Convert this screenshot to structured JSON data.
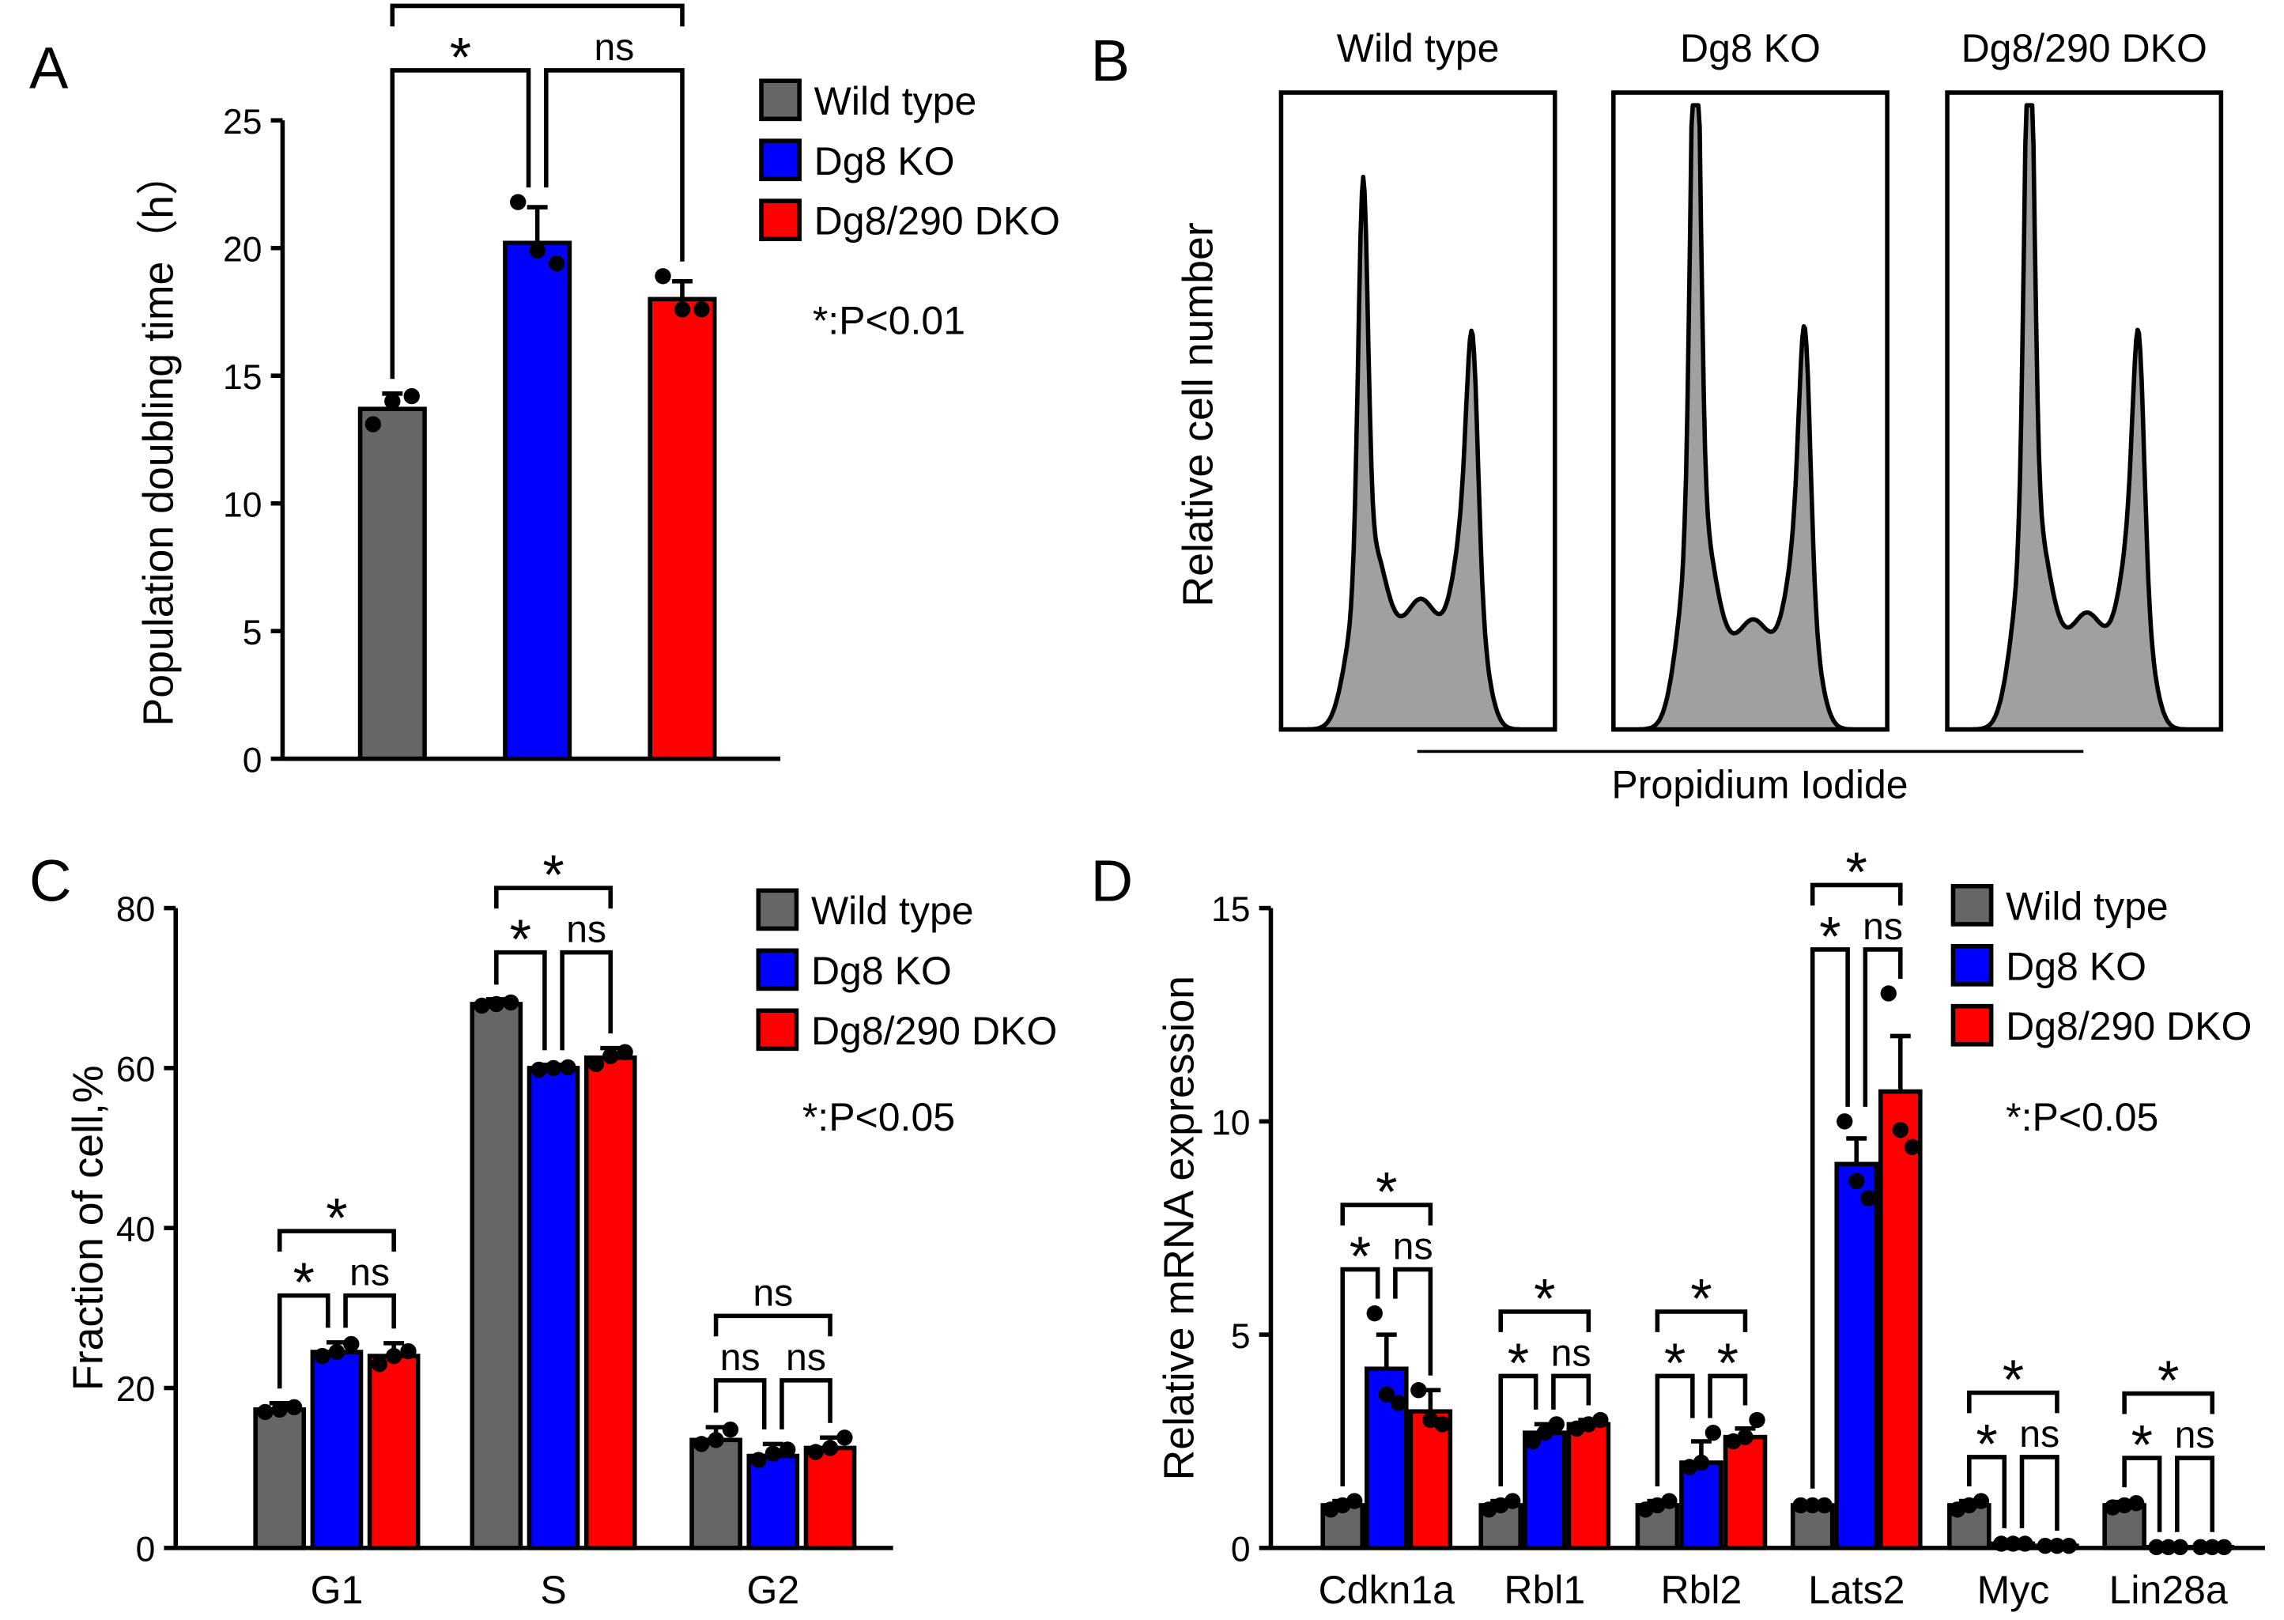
{
  "panels": {
    "A": "A",
    "B": "B",
    "C": "C",
    "D": "D"
  },
  "legend": [
    {
      "label": "Wild type",
      "color": "#666666"
    },
    {
      "label": "Dg8 KO",
      "color": "#0000ff"
    },
    {
      "label": "Dg8/290 DKO",
      "color": "#ff0000"
    }
  ],
  "chart_data": [
    {
      "id": "A",
      "type": "bar",
      "ylabel": "Population doubling time（h）",
      "ylim": [
        0,
        25
      ],
      "yticks": [
        0,
        5,
        10,
        15,
        20,
        25
      ],
      "note": "*:P<0.01",
      "categories": [
        ""
      ],
      "series": [
        {
          "name": "Wild type",
          "values": [
            13.7
          ],
          "err": [
            0.6
          ],
          "points": [
            [
              13.1,
              14.0,
              14.2
            ]
          ]
        },
        {
          "name": "Dg8 KO",
          "values": [
            20.2
          ],
          "err": [
            1.4
          ],
          "points": [
            [
              21.8,
              19.9,
              19.4
            ]
          ]
        },
        {
          "name": "Dg8/290 DKO",
          "values": [
            18.0
          ],
          "err": [
            0.7
          ],
          "points": [
            [
              18.9,
              17.6,
              17.6
            ]
          ]
        }
      ],
      "significance": [
        [
          {
            "pair": [
              0,
              1
            ],
            "label": "*"
          },
          {
            "pair": [
              1,
              2
            ],
            "label": "ns"
          },
          {
            "pair": [
              0,
              2
            ],
            "label": "*"
          }
        ]
      ]
    },
    {
      "id": "B",
      "type": "area",
      "ylabel": "Relative cell number",
      "xlabel": "Propidium Iodide",
      "histograms": [
        {
          "title": "Wild type",
          "g1_peak": 0.65,
          "s_level": 0.19,
          "g2_peak": 0.36
        },
        {
          "title": "Dg8 KO",
          "g1_peak": 0.92,
          "s_level": 0.16,
          "g2_peak": 0.38
        },
        {
          "title": "Dg8/290 DKO",
          "g1_peak": 0.89,
          "s_level": 0.17,
          "g2_peak": 0.37
        }
      ]
    },
    {
      "id": "C",
      "type": "bar",
      "ylabel": "Fraction of cell,%",
      "ylim": [
        0,
        80
      ],
      "yticks": [
        0,
        20,
        40,
        60,
        80
      ],
      "note": "*:P<0.05",
      "categories": [
        "G1",
        "S",
        "G2"
      ],
      "series": [
        {
          "name": "Wild type",
          "values": [
            17.3,
            68.0,
            13.5
          ],
          "err": [
            0.8,
            0.6,
            1.6
          ],
          "points": [
            [
              17.0,
              17.3,
              17.6
            ],
            [
              67.8,
              68.0,
              68.2
            ],
            [
              13.0,
              13.5,
              14.8
            ]
          ]
        },
        {
          "name": "Dg8 KO",
          "values": [
            24.5,
            60.0,
            11.5
          ],
          "err": [
            1.2,
            0.4,
            1.5
          ],
          "points": [
            [
              24.0,
              24.5,
              25.5
            ],
            [
              59.8,
              60.0,
              60.1
            ],
            [
              11.0,
              11.8,
              12.3
            ]
          ]
        },
        {
          "name": "Dg8/290 DKO",
          "values": [
            24.0,
            61.3,
            12.5
          ],
          "err": [
            1.6,
            1.2,
            1.3
          ],
          "points": [
            [
              23.0,
              24.0,
              24.6
            ],
            [
              60.5,
              61.5,
              62.0
            ],
            [
              12.0,
              12.5,
              13.8
            ]
          ]
        }
      ],
      "significance": [
        [
          {
            "pair": [
              0,
              1
            ],
            "label": "*"
          },
          {
            "pair": [
              1,
              2
            ],
            "label": "ns"
          },
          {
            "pair": [
              0,
              2
            ],
            "label": "*"
          }
        ],
        [
          {
            "pair": [
              0,
              1
            ],
            "label": "*"
          },
          {
            "pair": [
              1,
              2
            ],
            "label": "ns"
          },
          {
            "pair": [
              0,
              2
            ],
            "label": "*"
          }
        ],
        [
          {
            "pair": [
              0,
              1
            ],
            "label": "ns"
          },
          {
            "pair": [
              1,
              2
            ],
            "label": "ns"
          },
          {
            "pair": [
              0,
              2
            ],
            "label": "ns"
          }
        ]
      ]
    },
    {
      "id": "D",
      "type": "bar",
      "ylabel": "Relative mRNA expression",
      "ylim": [
        0,
        15
      ],
      "yticks": [
        0,
        5,
        10,
        15
      ],
      "note": "*:P<0.05",
      "categories": [
        "Cdkn1a",
        "Rbl1",
        "Rbl2",
        "Lats2",
        "Myc",
        "Lin28a"
      ],
      "series": [
        {
          "name": "Wild type",
          "values": [
            1.0,
            1.0,
            1.0,
            1.0,
            1.0,
            1.0
          ],
          "err": [
            0.1,
            0.1,
            0.1,
            0.05,
            0.1,
            0.08
          ],
          "points": [
            [
              0.9,
              1.0,
              1.1
            ],
            [
              0.9,
              1.0,
              1.1
            ],
            [
              0.9,
              1.0,
              1.1
            ],
            [
              1.0,
              1.0,
              1.0
            ],
            [
              0.9,
              1.0,
              1.1
            ],
            [
              0.95,
              1.0,
              1.05
            ]
          ]
        },
        {
          "name": "Dg8 KO",
          "values": [
            4.2,
            2.7,
            2.0,
            9.0,
            0.1,
            0.02
          ],
          "err": [
            0.8,
            0.2,
            0.5,
            0.6,
            0.02,
            0.01
          ],
          "points": [
            [
              5.5,
              3.6,
              3.4
            ],
            [
              2.5,
              2.7,
              2.9
            ],
            [
              1.9,
              2.0,
              2.7
            ],
            [
              10.0,
              8.6,
              8.2
            ],
            [
              0.1,
              0.1,
              0.1
            ],
            [
              0.02,
              0.02,
              0.02
            ]
          ]
        },
        {
          "name": "Dg8/290 DKO",
          "values": [
            3.2,
            2.9,
            2.6,
            10.7,
            0.05,
            0.02
          ],
          "err": [
            0.5,
            0.1,
            0.2,
            1.3,
            0.01,
            0.01
          ],
          "points": [
            [
              3.7,
              3.0,
              2.9
            ],
            [
              2.8,
              2.9,
              3.0
            ],
            [
              2.5,
              2.6,
              3.0
            ],
            [
              13.0,
              9.8,
              9.4
            ],
            [
              0.05,
              0.05,
              0.05
            ],
            [
              0.02,
              0.02,
              0.02
            ]
          ]
        }
      ],
      "significance": [
        [
          {
            "pair": [
              0,
              1
            ],
            "label": "*"
          },
          {
            "pair": [
              1,
              2
            ],
            "label": "ns"
          },
          {
            "pair": [
              0,
              2
            ],
            "label": "*"
          }
        ],
        [
          {
            "pair": [
              0,
              1
            ],
            "label": "*"
          },
          {
            "pair": [
              1,
              2
            ],
            "label": "ns"
          },
          {
            "pair": [
              0,
              2
            ],
            "label": "*"
          }
        ],
        [
          {
            "pair": [
              0,
              1
            ],
            "label": "*"
          },
          {
            "pair": [
              1,
              2
            ],
            "label": "*"
          },
          {
            "pair": [
              0,
              2
            ],
            "label": "*"
          }
        ],
        [
          {
            "pair": [
              0,
              1
            ],
            "label": "*"
          },
          {
            "pair": [
              1,
              2
            ],
            "label": "ns"
          },
          {
            "pair": [
              0,
              2
            ],
            "label": "*"
          }
        ],
        [
          {
            "pair": [
              0,
              1
            ],
            "label": "*"
          },
          {
            "pair": [
              1,
              2
            ],
            "label": "ns"
          },
          {
            "pair": [
              0,
              2
            ],
            "label": "*"
          }
        ],
        [
          {
            "pair": [
              0,
              1
            ],
            "label": "*"
          },
          {
            "pair": [
              1,
              2
            ],
            "label": "ns"
          },
          {
            "pair": [
              0,
              2
            ],
            "label": "*"
          }
        ]
      ]
    }
  ]
}
